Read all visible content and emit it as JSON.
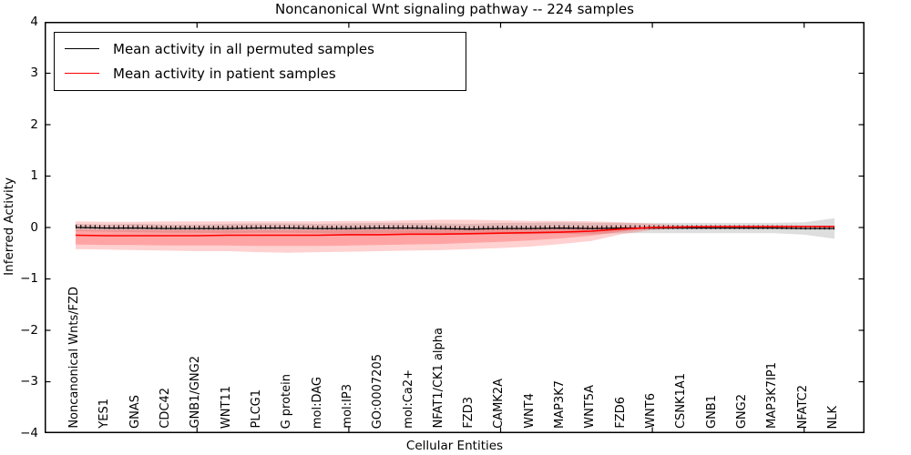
{
  "title": "Noncanonical Wnt signaling pathway -- 224 samples",
  "legend": {
    "position": "upper left",
    "items": [
      {
        "label": "Mean activity in all permuted samples",
        "color": "#000000"
      },
      {
        "label": "Mean activity in patient samples",
        "color": "#ff0000"
      }
    ]
  },
  "chart_data": {
    "type": "line",
    "title": "Noncanonical Wnt signaling pathway -- 224 samples",
    "xlabel": "Cellular Entities",
    "ylabel": "Inferred Activity",
    "ylim": [
      -4,
      4
    ],
    "yticks": [
      4,
      3,
      2,
      1,
      0,
      -1,
      -2,
      -3,
      -4
    ],
    "xtick_indices": [
      4,
      9,
      14,
      19,
      24
    ],
    "grid": false,
    "legend_position": "upper left",
    "categories": [
      "Noncanonical Wnts/FZD",
      "YES1",
      "GNAS",
      "CDC42",
      "GNB1/GNG2",
      "WNT11",
      "PLCG1",
      "G protein",
      "mol:DAG",
      "mol:IP3",
      "GO:0007205",
      "mol:Ca2+",
      "NFAT1/CK1 alpha",
      "FZD3",
      "CAMK2A",
      "WNT4",
      "MAP3K7",
      "WNT5A",
      "FZD6",
      "WNT6",
      "CSNK1A1",
      "GNB1",
      "GNG2",
      "MAP3K7IP1",
      "NFATC2",
      "NLK"
    ],
    "series": [
      {
        "name": "Mean activity in all permuted samples",
        "color": "#000000",
        "marker": "tick",
        "values": [
          0.0,
          -0.01,
          -0.01,
          -0.02,
          -0.02,
          -0.02,
          -0.01,
          -0.01,
          -0.02,
          -0.02,
          -0.01,
          -0.01,
          -0.02,
          -0.03,
          -0.02,
          -0.02,
          -0.01,
          -0.02,
          -0.01,
          -0.01,
          -0.01,
          -0.01,
          -0.01,
          -0.01,
          -0.02,
          -0.02
        ]
      },
      {
        "name": "Mean activity in patient samples",
        "color": "#ff0000",
        "marker": "none",
        "values": [
          -0.15,
          -0.16,
          -0.16,
          -0.16,
          -0.16,
          -0.15,
          -0.15,
          -0.15,
          -0.15,
          -0.14,
          -0.14,
          -0.13,
          -0.13,
          -0.12,
          -0.11,
          -0.1,
          -0.09,
          -0.07,
          -0.03,
          0.0,
          0.01,
          0.02,
          0.02,
          0.02,
          0.02,
          0.02
        ]
      }
    ],
    "bands": [
      {
        "name": "permuted-samples-spread-band",
        "color": "rgba(0,0,0,0.13)",
        "upper": [
          0.07,
          0.06,
          0.07,
          0.06,
          0.06,
          0.07,
          0.08,
          0.08,
          0.07,
          0.08,
          0.09,
          0.09,
          0.08,
          0.07,
          0.09,
          0.09,
          0.1,
          0.09,
          0.09,
          0.09,
          0.09,
          0.09,
          0.09,
          0.09,
          0.1,
          0.18
        ],
        "lower": [
          -0.07,
          -0.08,
          -0.09,
          -0.1,
          -0.1,
          -0.11,
          -0.1,
          -0.1,
          -0.11,
          -0.12,
          -0.11,
          -0.11,
          -0.12,
          -0.13,
          -0.13,
          -0.13,
          -0.12,
          -0.13,
          -0.11,
          -0.11,
          -0.11,
          -0.11,
          -0.11,
          -0.11,
          -0.14,
          -0.22
        ]
      },
      {
        "name": "patient-samples-spread-band-outer",
        "color": "rgba(255,45,45,0.22)",
        "upper": [
          0.12,
          0.11,
          0.11,
          0.12,
          0.12,
          0.12,
          0.12,
          0.12,
          0.12,
          0.13,
          0.13,
          0.14,
          0.15,
          0.15,
          0.14,
          0.13,
          0.13,
          0.12,
          0.1,
          0.07,
          0.04,
          0.02,
          0.02,
          0.02,
          0.02,
          0.02
        ],
        "lower": [
          -0.42,
          -0.43,
          -0.44,
          -0.45,
          -0.46,
          -0.46,
          -0.48,
          -0.49,
          -0.48,
          -0.47,
          -0.46,
          -0.45,
          -0.44,
          -0.42,
          -0.4,
          -0.37,
          -0.32,
          -0.26,
          -0.13,
          -0.05,
          -0.01,
          0.02,
          0.02,
          0.02,
          0.02,
          0.02
        ]
      },
      {
        "name": "patient-samples-spread-band-inner",
        "color": "rgba(255,45,45,0.28)",
        "upper": [
          -0.04,
          -0.05,
          -0.05,
          -0.05,
          -0.05,
          -0.05,
          -0.05,
          -0.05,
          -0.05,
          -0.04,
          -0.04,
          -0.04,
          -0.04,
          -0.03,
          -0.03,
          -0.02,
          -0.01,
          0.0,
          0.01,
          0.02,
          0.02,
          0.02,
          0.02,
          0.02,
          0.02,
          0.02
        ],
        "lower": [
          -0.33,
          -0.34,
          -0.34,
          -0.35,
          -0.35,
          -0.35,
          -0.36,
          -0.36,
          -0.36,
          -0.35,
          -0.34,
          -0.33,
          -0.32,
          -0.3,
          -0.28,
          -0.25,
          -0.21,
          -0.16,
          -0.08,
          -0.02,
          0.0,
          0.02,
          0.02,
          0.02,
          0.02,
          0.02
        ]
      }
    ]
  }
}
